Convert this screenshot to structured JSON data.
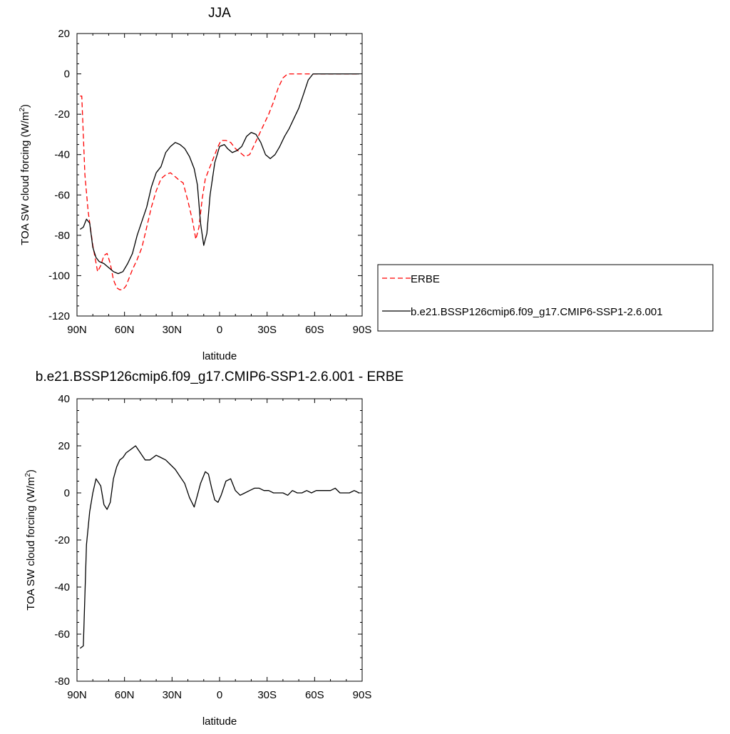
{
  "chart_data": [
    {
      "type": "line",
      "title": "JJA",
      "xlabel": "latitude",
      "ylabel_main": "TOA SW cloud forcing (W/m",
      "ylabel_sup": "2",
      "ylabel_end": ")",
      "xlim": [
        90,
        -90
      ],
      "ylim": [
        -120,
        20
      ],
      "xticks": [
        90,
        60,
        30,
        0,
        -30,
        -60,
        -90
      ],
      "xtick_labels": [
        "90N",
        "60N",
        "30N",
        "0",
        "30S",
        "60S",
        "90S"
      ],
      "yticks": [
        -120,
        -100,
        -80,
        -60,
        -40,
        -20,
        0,
        20
      ],
      "ytick_labels": [
        "-120",
        "-100",
        "-80",
        "-60",
        "-40",
        "-20",
        "0",
        "20"
      ],
      "legend_placement": "right",
      "series": [
        {
          "name": "ERBE",
          "color": "#ff0000",
          "dash": "dashed",
          "x": [
            88,
            87,
            85,
            83,
            80,
            77,
            75,
            73,
            71,
            69,
            67,
            65,
            63,
            61,
            59,
            57,
            55,
            52,
            49,
            46,
            43,
            40,
            37,
            34,
            31,
            28,
            25,
            23,
            20,
            17,
            15,
            13,
            11,
            9,
            7,
            5,
            3,
            1,
            -1,
            -4,
            -7,
            -10,
            -13,
            -16,
            -19,
            -22,
            -25,
            -28,
            -31,
            -34,
            -37,
            -40,
            -43,
            -46,
            -49,
            -52,
            -55,
            -58,
            -61,
            -64,
            -67,
            -70,
            -73,
            -76,
            -79,
            -82,
            -85,
            -88
          ],
          "y": [
            -11,
            -11,
            -50,
            -68,
            -85,
            -98,
            -95,
            -90,
            -89,
            -94,
            -102,
            -106,
            -107,
            -107,
            -105,
            -101,
            -97,
            -92,
            -86,
            -76,
            -66,
            -58,
            -52,
            -50,
            -49,
            -51,
            -53,
            -54,
            -63,
            -73,
            -82,
            -76,
            -62,
            -52,
            -48,
            -44,
            -40,
            -36,
            -33,
            -33,
            -34,
            -37,
            -39,
            -41,
            -40,
            -35,
            -30,
            -25,
            -20,
            -14,
            -7,
            -2,
            0,
            0,
            0,
            0,
            0,
            0,
            0,
            0,
            0,
            0,
            0,
            0,
            0,
            0,
            0,
            0
          ]
        },
        {
          "name": "b.e21.BSSP126cmip6.f09_g17.CMIP6-SSP1-2.6.001",
          "color": "#000000",
          "dash": "solid",
          "x": [
            88,
            86,
            84,
            82,
            80,
            78,
            76,
            73,
            70,
            67,
            64,
            61,
            58,
            55,
            52,
            49,
            46,
            43,
            40,
            37,
            34,
            31,
            28,
            25,
            22,
            19,
            16,
            14,
            12,
            10,
            8,
            6,
            3,
            0,
            -3,
            -5,
            -8,
            -11,
            -14,
            -17,
            -20,
            -23,
            -26,
            -29,
            -32,
            -35,
            -38,
            -41,
            -44,
            -47,
            -50,
            -53,
            -56,
            -59,
            -62,
            -65,
            -67,
            -70,
            -73,
            -76,
            -79,
            -82,
            -85,
            -88
          ],
          "y": [
            -77,
            -76,
            -72,
            -74,
            -86,
            -91,
            -93,
            -94,
            -96,
            -98,
            -99,
            -98,
            -94,
            -89,
            -80,
            -73,
            -66,
            -56,
            -49,
            -46,
            -39,
            -36,
            -34,
            -35,
            -37,
            -41,
            -47,
            -55,
            -74,
            -85,
            -79,
            -60,
            -44,
            -36,
            -35,
            -37,
            -39,
            -38,
            -36,
            -31,
            -29,
            -30,
            -34,
            -40,
            -42,
            -40,
            -36,
            -31,
            -27,
            -22,
            -17,
            -10,
            -3,
            0,
            0,
            0,
            0,
            0,
            0,
            0,
            0,
            0,
            0,
            0
          ]
        }
      ]
    },
    {
      "type": "line",
      "title": "b.e21.BSSP126cmip6.f09_g17.CMIP6-SSP1-2.6.001 - ERBE",
      "xlabel": "latitude",
      "ylabel_main": "TOA SW cloud forcing (W/m",
      "ylabel_sup": "2",
      "ylabel_end": ")",
      "xlim": [
        90,
        -90
      ],
      "ylim": [
        -80,
        40
      ],
      "xticks": [
        90,
        60,
        30,
        0,
        -30,
        -60,
        -90
      ],
      "xtick_labels": [
        "90N",
        "60N",
        "30N",
        "0",
        "30S",
        "60S",
        "90S"
      ],
      "yticks": [
        -80,
        -60,
        -40,
        -20,
        0,
        20,
        40
      ],
      "ytick_labels": [
        "-80",
        "-60",
        "-40",
        "-20",
        "0",
        "20",
        "40"
      ],
      "series": [
        {
          "name": "",
          "color": "#000000",
          "dash": "solid",
          "x": [
            88,
            86,
            84,
            82,
            80,
            78,
            75,
            73,
            71,
            69,
            67,
            65,
            63,
            61,
            59,
            57,
            55,
            53,
            50,
            47,
            44,
            42,
            40,
            37,
            34,
            31,
            28,
            25,
            22,
            19,
            16,
            14,
            12,
            9,
            7,
            5,
            3,
            1,
            -1,
            -4,
            -7,
            -10,
            -13,
            -16,
            -19,
            -22,
            -25,
            -28,
            -31,
            -34,
            -37,
            -40,
            -43,
            -46,
            -49,
            -52,
            -55,
            -58,
            -61,
            -64,
            -67,
            -70,
            -73,
            -76,
            -79,
            -82,
            -85,
            -88
          ],
          "y": [
            -66,
            -65,
            -22,
            -8,
            0,
            6,
            3,
            -5,
            -7,
            -4,
            6,
            11,
            14,
            15,
            17,
            18,
            19,
            20,
            17,
            14,
            14,
            15,
            16,
            15,
            14,
            12,
            10,
            7,
            4,
            -2,
            -6,
            -1,
            4,
            9,
            8,
            2,
            -3,
            -4,
            -1,
            5,
            6,
            1,
            -1,
            0,
            1,
            2,
            2,
            1,
            1,
            0,
            0,
            0,
            -1,
            1,
            0,
            0,
            1,
            0,
            1,
            1,
            1,
            1,
            2,
            0,
            0,
            0,
            1,
            0
          ]
        }
      ]
    }
  ]
}
